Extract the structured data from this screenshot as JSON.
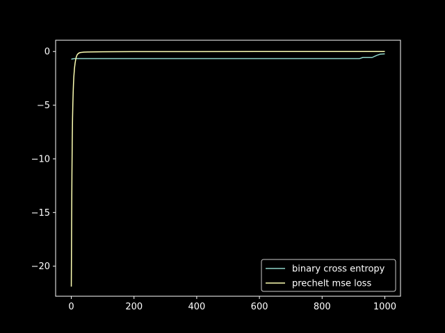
{
  "chart_data": {
    "type": "line",
    "title": "",
    "xlabel": "",
    "ylabel": "",
    "xlim": [
      -50,
      1050
    ],
    "ylim": [
      -22.8,
      1.05
    ],
    "xticks": [
      0,
      200,
      400,
      600,
      800,
      1000
    ],
    "yticks": [
      0,
      -5,
      -10,
      -15,
      -20
    ],
    "xtick_labels": [
      "0",
      "200",
      "400",
      "600",
      "800",
      "1000"
    ],
    "ytick_labels": [
      "0",
      "−5",
      "−10",
      "−15",
      "−20"
    ],
    "grid": false,
    "legend_position": "bottom-right",
    "background": "#000000",
    "axis_color": "#ffffff",
    "series": [
      {
        "name": "binary cross entropy",
        "color": "#8dd3c7",
        "x": [
          0,
          5,
          10,
          20,
          50,
          100,
          200,
          400,
          600,
          800,
          900,
          920,
          930,
          940,
          960,
          975,
          985,
          1000
        ],
        "y": [
          -0.72,
          -0.68,
          -0.66,
          -0.66,
          -0.66,
          -0.66,
          -0.66,
          -0.66,
          -0.66,
          -0.66,
          -0.66,
          -0.66,
          -0.55,
          -0.55,
          -0.55,
          -0.35,
          -0.25,
          -0.22
        ]
      },
      {
        "name": "prechelt mse loss",
        "color": "#feffb3",
        "x": [
          0,
          1,
          2,
          3,
          4,
          5,
          6,
          7,
          8,
          10,
          12,
          14,
          16,
          18,
          20,
          25,
          30,
          40,
          60,
          100,
          200,
          400,
          600,
          800,
          1000
        ],
        "y": [
          -21.9,
          -16.0,
          -11.5,
          -8.3,
          -6.2,
          -4.8,
          -3.8,
          -3.0,
          -2.4,
          -1.6,
          -1.1,
          -0.75,
          -0.5,
          -0.35,
          -0.25,
          -0.13,
          -0.09,
          -0.06,
          -0.04,
          -0.025,
          -0.01,
          -0.005,
          -0.003,
          -0.002,
          -0.001
        ]
      }
    ]
  }
}
